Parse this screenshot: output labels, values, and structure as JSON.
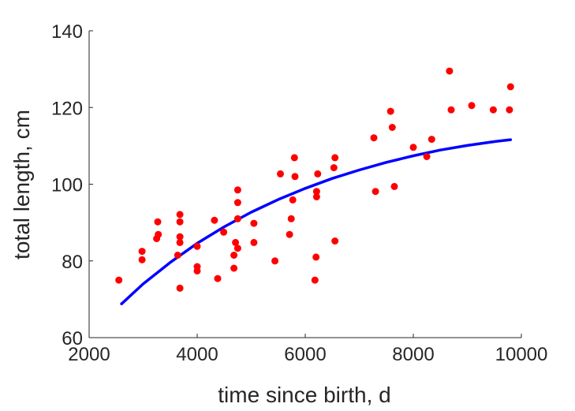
{
  "chart_data": {
    "type": "scatter",
    "title": "",
    "xlabel": "time since birth, d",
    "ylabel": "total length, cm",
    "xlim": [
      2000,
      10000
    ],
    "ylim": [
      60,
      140
    ],
    "xticks": [
      2000,
      4000,
      6000,
      8000,
      10000
    ],
    "yticks": [
      60,
      80,
      100,
      120,
      140
    ],
    "xtick_labels": [
      "2000",
      "4000",
      "6000",
      "8000",
      "10000"
    ],
    "ytick_labels": [
      "60",
      "80",
      "100",
      "120",
      "140"
    ],
    "grid": false,
    "legend": "none",
    "series": [
      {
        "type": "scatter",
        "color": "#ff0000",
        "points": [
          [
            2550,
            75
          ],
          [
            2980,
            82.5
          ],
          [
            2980,
            80.3
          ],
          [
            3250,
            85.8
          ],
          [
            3270,
            90.2
          ],
          [
            3280,
            86.9
          ],
          [
            3640,
            81.5
          ],
          [
            3680,
            92.1
          ],
          [
            3680,
            90.2
          ],
          [
            3680,
            86.3
          ],
          [
            3680,
            84.8
          ],
          [
            3680,
            72.9
          ],
          [
            4000,
            83.8
          ],
          [
            4000,
            78.5
          ],
          [
            4000,
            77.4
          ],
          [
            4320,
            90.6
          ],
          [
            4380,
            75.4
          ],
          [
            4490,
            87.5
          ],
          [
            4680,
            81.5
          ],
          [
            4680,
            78.1
          ],
          [
            4710,
            84.8
          ],
          [
            4750,
            98.5
          ],
          [
            4750,
            95.2
          ],
          [
            4750,
            91.0
          ],
          [
            4750,
            83.3
          ],
          [
            5050,
            89.8
          ],
          [
            5050,
            84.8
          ],
          [
            5440,
            80.0
          ],
          [
            5540,
            102.7
          ],
          [
            5710,
            86.9
          ],
          [
            5740,
            91.0
          ],
          [
            5770,
            95.9
          ],
          [
            5800,
            106.9
          ],
          [
            5810,
            102.0
          ],
          [
            6180,
            75.0
          ],
          [
            6200,
            81.0
          ],
          [
            6210,
            98.1
          ],
          [
            6210,
            96.7
          ],
          [
            6230,
            102.7
          ],
          [
            6530,
            104.3
          ],
          [
            6550,
            106.9
          ],
          [
            6550,
            85.2
          ],
          [
            7270,
            112.1
          ],
          [
            7300,
            98.1
          ],
          [
            7580,
            119.0
          ],
          [
            7610,
            114.8
          ],
          [
            7650,
            99.4
          ],
          [
            8000,
            109.6
          ],
          [
            8250,
            107.2
          ],
          [
            8340,
            111.7
          ],
          [
            8670,
            129.5
          ],
          [
            8700,
            119.4
          ],
          [
            9080,
            120.5
          ],
          [
            9480,
            119.4
          ],
          [
            9780,
            119.4
          ],
          [
            9800,
            125.4
          ]
        ]
      },
      {
        "type": "line",
        "color": "#0000ff",
        "points": [
          [
            2600,
            68.8
          ],
          [
            3000,
            74.0
          ],
          [
            3500,
            79.6
          ],
          [
            4000,
            84.6
          ],
          [
            4500,
            88.9
          ],
          [
            5000,
            92.7
          ],
          [
            5500,
            96.0
          ],
          [
            6000,
            98.9
          ],
          [
            6500,
            101.5
          ],
          [
            7000,
            103.7
          ],
          [
            7500,
            105.7
          ],
          [
            8000,
            107.4
          ],
          [
            8500,
            108.9
          ],
          [
            9000,
            110.1
          ],
          [
            9500,
            111.1
          ],
          [
            9800,
            111.6
          ]
        ]
      }
    ]
  }
}
